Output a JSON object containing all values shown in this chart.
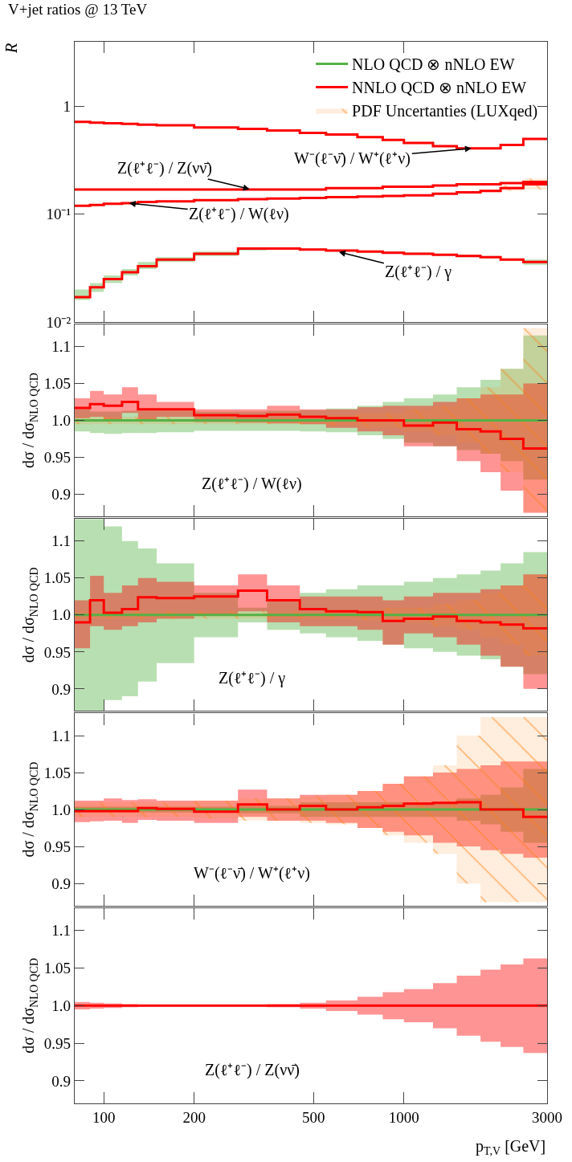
{
  "chart_data": [
    {
      "type": "step",
      "title": "V+jet ratios @ 13 TeV",
      "ylabel": "R",
      "log": "xy",
      "legend": "top right",
      "tick_labels": "y",
      "x": [
        80,
        90,
        100,
        115,
        130,
        150,
        200,
        280,
        350,
        450,
        550,
        700,
        850,
        1000,
        1250,
        1500,
        1800,
        2100,
        2500,
        3000
      ],
      "xlim": [
        80,
        3000
      ],
      "xticks": [
        100,
        200,
        500,
        1000,
        3000
      ],
      "ylim": [
        0.01,
        4
      ],
      "yticks": [
        {
          "value": 0.01,
          "label": "10⁻²"
        },
        {
          "value": 0.1,
          "label": "10⁻¹"
        },
        1
      ],
      "series": [
        {
          "name": "NLO QCD ⊗ nNLO EW",
          "color": "#55b245",
          "values": [
            null,
            null,
            null,
            null,
            null,
            null,
            null,
            null,
            null,
            null,
            null,
            null,
            null,
            null,
            null,
            null,
            null,
            null,
            null,
            null
          ],
          "lower": [
            0.016,
            0.019,
            0.023,
            0.027,
            0.031,
            0.036,
            0.041,
            0.046,
            0.047,
            0.046,
            0.045,
            0.044,
            0.043,
            0.042,
            0.041,
            0.04,
            0.039,
            0.037,
            0.034,
            0.034
          ],
          "upper": [
            0.02,
            0.023,
            0.027,
            0.031,
            0.036,
            0.04,
            0.045,
            0.048,
            0.049,
            0.048,
            0.047,
            0.046,
            0.045,
            0.044,
            0.043,
            0.042,
            0.041,
            0.039,
            0.038,
            0.038
          ]
        },
        {
          "type": "area",
          "color": "#ff7f0e",
          "values": [
            null,
            null,
            null,
            null,
            null,
            null,
            null,
            null,
            null,
            null,
            null,
            null,
            null,
            null,
            null,
            null,
            null,
            null,
            null,
            null
          ],
          "lower": [
            null,
            null,
            null,
            null,
            null,
            null,
            null,
            null,
            null,
            null,
            null,
            null,
            null,
            null,
            null,
            null,
            0.16,
            0.165,
            0.17,
            0.17
          ],
          "upper": [
            null,
            null,
            null,
            null,
            null,
            null,
            null,
            null,
            null,
            null,
            null,
            null,
            null,
            null,
            null,
            null,
            0.17,
            0.185,
            0.215,
            0.215
          ]
        },
        {
          "name": "NNLO QCD ⊗ nNLO EW",
          "color": "#ff0000",
          "values": [
            0.72,
            0.71,
            0.7,
            0.69,
            0.68,
            0.67,
            0.64,
            0.62,
            0.6,
            0.57,
            0.55,
            0.52,
            0.49,
            0.46,
            0.43,
            0.41,
            0.41,
            0.44,
            0.5,
            0.5
          ]
        },
        {
          "color": "#ff0000",
          "values": [
            0.17,
            0.17,
            0.17,
            0.17,
            0.17,
            0.17,
            0.17,
            0.17,
            0.17,
            0.17,
            0.175,
            0.175,
            0.18,
            0.18,
            0.185,
            0.19,
            0.19,
            0.195,
            0.2,
            0.2
          ]
        },
        {
          "color": "#ff0000",
          "values": [
            0.12,
            0.122,
            0.125,
            0.127,
            0.13,
            0.132,
            0.135,
            0.138,
            0.14,
            0.142,
            0.144,
            0.146,
            0.148,
            0.15,
            0.155,
            0.16,
            0.165,
            0.175,
            0.19,
            0.19
          ]
        },
        {
          "color": "#ff0000",
          "values": [
            0.017,
            0.021,
            0.025,
            0.029,
            0.033,
            0.038,
            0.043,
            0.048,
            0.048,
            0.047,
            0.046,
            0.045,
            0.044,
            0.043,
            0.042,
            0.041,
            0.04,
            0.038,
            0.036,
            0.036
          ]
        }
      ],
      "annotations": [
        {
          "text": "Z(ℓ⁺ℓ⁻) / Z(νν̄)",
          "x": 310,
          "y": 0.17
        },
        {
          "text": "W⁻(ℓ⁻ν̄) / W⁺(ℓ⁺ν)",
          "x": 1700,
          "y": 0.41
        },
        {
          "text": "Z(ℓ⁺ℓ⁻) / W(ℓν)",
          "x": 120,
          "y": 0.127
        },
        {
          "text": "Z(ℓ⁺ℓ⁻) / γ",
          "x": 600,
          "y": 0.045
        }
      ]
    },
    {
      "type": "step",
      "ylabel": "dσ / dσ$_{NLO QCD}$",
      "log": "x",
      "tick_labels": "y",
      "x": [
        80,
        90,
        100,
        115,
        130,
        150,
        200,
        280,
        350,
        450,
        550,
        700,
        850,
        1000,
        1250,
        1500,
        1800,
        2100,
        2500,
        3000
      ],
      "xlim": [
        80,
        3000
      ],
      "xticks": [
        100,
        200,
        500,
        1000,
        3000
      ],
      "ylim": [
        0.87,
        1.13
      ],
      "yticks": [
        0.9,
        0.95,
        {
          "value": 1.0,
          "label": "1.0"
        },
        1.05,
        1.1
      ],
      "series": [
        {
          "color": "#55b245",
          "values": [
            1.0,
            1.0,
            1.0,
            1.0,
            1.0,
            1.0,
            1.0,
            1.0,
            1.0,
            1.0,
            1.0,
            1.0,
            1.0,
            1.0,
            1.0,
            1.0,
            1.0,
            1.0,
            1.0,
            1.0
          ],
          "lower": [
            0.985,
            0.983,
            0.982,
            0.983,
            0.983,
            0.984,
            0.986,
            0.986,
            0.986,
            0.985,
            0.984,
            0.98,
            0.975,
            0.97,
            0.965,
            0.96,
            0.955,
            0.945,
            0.92,
            0.92
          ],
          "upper": [
            1.015,
            1.012,
            1.012,
            1.013,
            1.013,
            1.013,
            1.012,
            1.012,
            1.013,
            1.014,
            1.016,
            1.02,
            1.025,
            1.03,
            1.035,
            1.045,
            1.055,
            1.07,
            1.115,
            1.115
          ]
        },
        {
          "color": "#ff0000",
          "values": [
            1.017,
            1.022,
            1.02,
            1.025,
            1.015,
            1.015,
            1.007,
            1.006,
            1.008,
            1.005,
            1.003,
            1.0,
            1.0,
            0.993,
            0.997,
            0.988,
            0.985,
            0.975,
            0.962,
            0.962
          ],
          "lower": [
            1.003,
            1.005,
            1.0,
            1.01,
            1.0,
            1.005,
            0.998,
            0.997,
            0.996,
            0.995,
            0.99,
            0.985,
            0.98,
            0.965,
            0.965,
            0.945,
            0.93,
            0.905,
            0.875,
            0.875
          ],
          "upper": [
            1.03,
            1.04,
            1.035,
            1.045,
            1.035,
            1.025,
            1.015,
            1.015,
            1.02,
            1.015,
            1.015,
            1.018,
            1.02,
            1.02,
            1.025,
            1.03,
            1.035,
            1.035,
            1.05,
            1.05
          ]
        },
        {
          "type": "area",
          "color": "#ff7f0e",
          "values": [
            null,
            null,
            null,
            null,
            null,
            null,
            null,
            null,
            null,
            null,
            null,
            null,
            null,
            null,
            null,
            null,
            null,
            null,
            null,
            null
          ],
          "lower": [
            0.995,
            0.995,
            0.995,
            0.995,
            0.995,
            0.995,
            0.995,
            0.995,
            0.995,
            0.995,
            0.993,
            0.99,
            0.99,
            0.985,
            0.98,
            0.97,
            0.955,
            0.93,
            0.875,
            0.875
          ],
          "upper": [
            1.005,
            1.005,
            1.005,
            1.005,
            1.005,
            1.005,
            1.005,
            1.005,
            1.005,
            1.005,
            1.007,
            1.01,
            1.01,
            1.015,
            1.02,
            1.03,
            1.045,
            1.07,
            1.125,
            1.125
          ]
        }
      ],
      "annotations": [
        "Z(ℓ⁺ℓ⁻) / W(ℓν)"
      ]
    },
    {
      "type": "step",
      "ylabel": "dσ / dσ$_{NLO QCD}$",
      "log": "x",
      "tick_labels": "y",
      "x": [
        80,
        90,
        100,
        115,
        130,
        150,
        200,
        280,
        350,
        450,
        550,
        700,
        850,
        1000,
        1250,
        1500,
        1800,
        2100,
        2500,
        3000
      ],
      "xlim": [
        80,
        3000
      ],
      "xticks": [
        100,
        200,
        500,
        1000,
        3000
      ],
      "ylim": [
        0.87,
        1.13
      ],
      "yticks": [
        0.9,
        0.95,
        {
          "value": 1.0,
          "label": "1.0"
        },
        1.05,
        1.1
      ],
      "series": [
        {
          "color": "#55b245",
          "values": [
            1.0,
            1.0,
            1.0,
            1.0,
            1.0,
            1.0,
            1.0,
            1.0,
            1.0,
            1.0,
            1.0,
            1.0,
            1.0,
            1.0,
            1.0,
            1.0,
            1.0,
            1.0,
            1.0,
            1.0
          ],
          "lower": [
            0.87,
            0.87,
            0.885,
            0.89,
            0.91,
            0.935,
            0.97,
            0.99,
            0.98,
            0.975,
            0.97,
            0.965,
            0.96,
            0.955,
            0.95,
            0.945,
            0.94,
            0.93,
            0.92,
            0.92
          ],
          "upper": [
            1.13,
            1.13,
            1.12,
            1.1,
            1.09,
            1.07,
            1.03,
            1.01,
            1.02,
            1.03,
            1.035,
            1.04,
            1.04,
            1.045,
            1.05,
            1.055,
            1.06,
            1.07,
            1.085,
            1.085
          ]
        },
        {
          "color": "#ff0000",
          "values": [
            0.99,
            1.02,
            1.003,
            1.008,
            1.024,
            1.023,
            1.025,
            1.033,
            1.02,
            1.008,
            1.005,
            1.004,
            0.992,
            0.995,
            0.998,
            0.992,
            0.99,
            0.987,
            0.982,
            0.982
          ],
          "lower": [
            0.955,
            0.985,
            0.98,
            0.985,
            0.99,
            0.995,
            1.0,
            1.005,
            0.99,
            0.985,
            0.985,
            0.98,
            0.96,
            0.975,
            0.97,
            0.96,
            0.945,
            0.93,
            0.9,
            0.9
          ],
          "upper": [
            1.02,
            1.053,
            1.03,
            1.04,
            1.05,
            1.045,
            1.04,
            1.055,
            1.04,
            1.025,
            1.025,
            1.025,
            1.02,
            1.025,
            1.03,
            1.03,
            1.035,
            1.04,
            1.055,
            1.055
          ]
        },
        {
          "type": "area",
          "color": "#ff7f0e",
          "values": [
            null,
            null,
            null,
            null,
            null,
            null,
            null,
            null,
            null,
            null,
            null,
            null,
            null,
            null,
            null,
            null,
            null,
            null,
            null,
            null
          ],
          "lower": [
            0.995,
            0.995,
            0.995,
            0.995,
            0.995,
            0.995,
            0.995,
            0.995,
            0.995,
            0.995,
            0.995,
            0.993,
            0.99,
            0.99,
            0.985,
            0.98,
            0.97,
            0.96,
            0.945,
            0.945
          ],
          "upper": [
            1.005,
            1.005,
            1.005,
            1.005,
            1.005,
            1.005,
            1.005,
            1.005,
            1.005,
            1.005,
            1.005,
            1.007,
            1.01,
            1.01,
            1.015,
            1.02,
            1.03,
            1.04,
            1.055,
            1.055
          ]
        }
      ],
      "annotations": [
        "Z(ℓ⁺ℓ⁻) / γ"
      ]
    },
    {
      "type": "step",
      "ylabel": "dσ / dσ$_{NLO QCD}$",
      "log": "x",
      "tick_labels": "y",
      "x": [
        80,
        90,
        100,
        115,
        130,
        150,
        200,
        280,
        350,
        450,
        550,
        700,
        850,
        1000,
        1250,
        1500,
        1800,
        2100,
        2500,
        3000
      ],
      "xlim": [
        80,
        3000
      ],
      "xticks": [
        100,
        200,
        500,
        1000,
        3000
      ],
      "ylim": [
        0.87,
        1.13
      ],
      "yticks": [
        0.9,
        0.95,
        {
          "value": 1.0,
          "label": "1.0"
        },
        1.05,
        1.1
      ],
      "series": [
        {
          "color": "#55b245",
          "values": [
            1.0,
            1.0,
            1.0,
            1.0,
            1.0,
            1.0,
            1.0,
            1.0,
            1.0,
            1.0,
            1.0,
            1.0,
            1.0,
            1.0,
            1.0,
            1.0,
            1.0,
            1.0,
            1.0,
            1.0
          ],
          "lower": [
            0.996,
            0.996,
            0.996,
            0.996,
            0.996,
            0.996,
            0.996,
            0.995,
            0.995,
            0.99,
            0.99,
            0.99,
            0.99,
            0.99,
            0.99,
            0.985,
            0.98,
            0.97,
            0.955,
            0.955
          ],
          "upper": [
            1.004,
            1.004,
            1.004,
            1.004,
            1.004,
            1.004,
            1.004,
            1.005,
            1.005,
            1.01,
            1.01,
            1.01,
            1.01,
            1.01,
            1.01,
            1.015,
            1.02,
            1.03,
            1.055,
            1.055
          ]
        },
        {
          "color": "#ff0000",
          "values": [
            0.998,
            0.998,
            0.998,
            0.998,
            1.002,
            1.001,
            0.997,
            1.007,
            1.0,
            1.005,
            1.0,
            1.003,
            1.005,
            1.008,
            1.009,
            1.01,
            1.0,
            1.0,
            0.99,
            0.99
          ],
          "lower": [
            0.983,
            0.984,
            0.985,
            0.982,
            0.986,
            0.985,
            0.982,
            0.99,
            0.985,
            0.985,
            0.982,
            0.975,
            0.97,
            0.965,
            0.955,
            0.95,
            0.945,
            0.94,
            0.935,
            0.935
          ],
          "upper": [
            1.012,
            1.012,
            1.015,
            1.013,
            1.014,
            1.012,
            1.012,
            1.027,
            1.015,
            1.02,
            1.02,
            1.025,
            1.035,
            1.045,
            1.05,
            1.055,
            1.06,
            1.065,
            1.065,
            1.065
          ]
        },
        {
          "name": "PDF Uncertanties (LUXqed)",
          "type": "area",
          "color": "#ff7f0e",
          "values": [
            null,
            null,
            null,
            null,
            null,
            null,
            null,
            null,
            null,
            null,
            null,
            null,
            null,
            null,
            null,
            null,
            null,
            null,
            null,
            null
          ],
          "lower": [
            0.99,
            0.99,
            0.99,
            0.99,
            0.99,
            0.99,
            0.988,
            0.985,
            0.985,
            0.982,
            0.98,
            0.975,
            0.965,
            0.955,
            0.94,
            0.9,
            0.875,
            0.875,
            0.875,
            0.875
          ],
          "upper": [
            1.01,
            1.01,
            1.01,
            1.01,
            1.01,
            1.01,
            1.012,
            1.015,
            1.015,
            1.018,
            1.02,
            1.025,
            1.035,
            1.045,
            1.06,
            1.1,
            1.125,
            1.125,
            1.125,
            1.125
          ]
        }
      ],
      "annotations": [
        "W⁻(ℓ⁻ν̄) / W⁺(ℓ⁺ν)"
      ]
    },
    {
      "type": "step",
      "ylabel": "dσ / dσ$_{NLO QCD}$",
      "xlabel": "p$_{T,V}$ [GeV]",
      "log": "x",
      "x": [
        80,
        90,
        100,
        115,
        130,
        150,
        200,
        280,
        350,
        450,
        550,
        700,
        850,
        1000,
        1250,
        1500,
        1800,
        2100,
        2500,
        3000
      ],
      "xlim": [
        80,
        3000
      ],
      "xticks": [
        100,
        200,
        500,
        1000,
        3000
      ],
      "ylim": [
        0.87,
        1.13
      ],
      "yticks": [
        0.9,
        0.95,
        {
          "value": 1.0,
          "label": "1.0"
        },
        1.05,
        1.1
      ],
      "series": [
        {
          "color": "#ff0000",
          "values": [
            1.0,
            1.0,
            1.0,
            1.0,
            1.0,
            1.0,
            1.0,
            1.0,
            1.0,
            1.0,
            1.0,
            1.0,
            1.0,
            1.0,
            1.0,
            1.0,
            1.0,
            1.0,
            1.0,
            1.0
          ],
          "lower": [
            0.995,
            0.996,
            0.997,
            0.998,
            0.999,
            0.999,
            0.999,
            0.999,
            0.998,
            0.996,
            0.993,
            0.988,
            0.982,
            0.978,
            0.97,
            0.96,
            0.952,
            0.945,
            0.937,
            0.937
          ],
          "upper": [
            1.005,
            1.004,
            1.003,
            1.002,
            1.001,
            1.001,
            1.001,
            1.001,
            1.002,
            1.004,
            1.007,
            1.012,
            1.018,
            1.022,
            1.03,
            1.04,
            1.048,
            1.055,
            1.063,
            1.063
          ]
        }
      ],
      "annotations": [
        "Z(ℓ⁺ℓ⁻) / Z(νν̄)"
      ]
    }
  ]
}
